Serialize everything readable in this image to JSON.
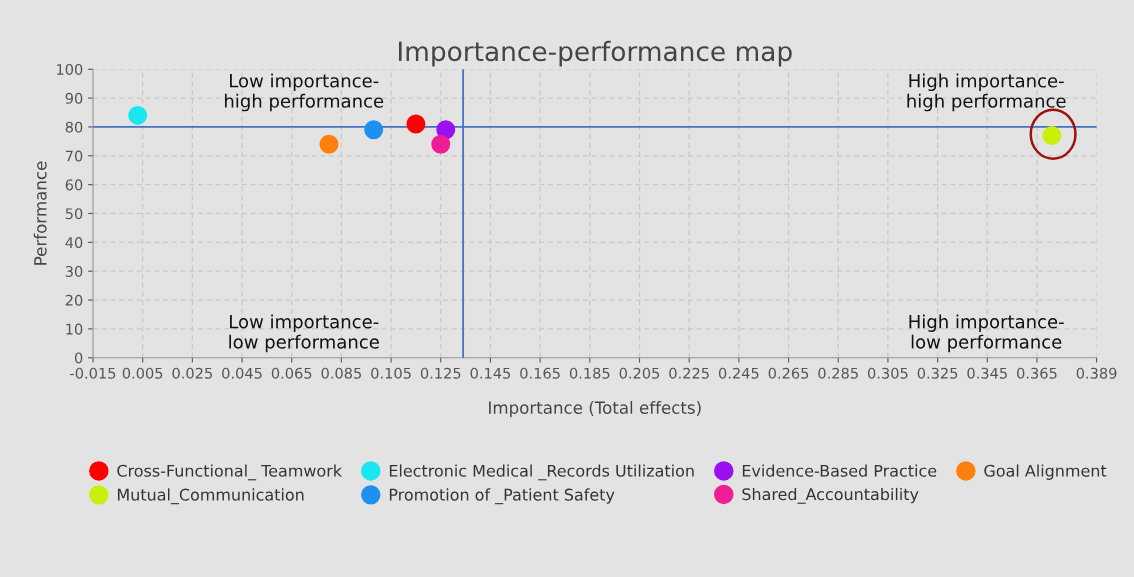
{
  "chart_data": {
    "type": "scatter",
    "title": "Importance-performance map",
    "xlabel": "Importance (Total effects)",
    "ylabel": "Performance",
    "xlim": [
      -0.015,
      0.389
    ],
    "xticks": [
      -0.015,
      0.005,
      0.025,
      0.045,
      0.065,
      0.085,
      0.105,
      0.125,
      0.145,
      0.165,
      0.185,
      0.205,
      0.225,
      0.245,
      0.265,
      0.285,
      0.305,
      0.325,
      0.345,
      0.365,
      0.389
    ],
    "ylim": [
      0,
      100
    ],
    "yticks": [
      0,
      10,
      20,
      30,
      40,
      50,
      60,
      70,
      80,
      90,
      100
    ],
    "grid": true,
    "legend": "bottom",
    "marker": "circle",
    "series": [
      {
        "name": "Cross-Functional_ Teamwork",
        "color": "#ff0000",
        "x": [
          0.115
        ],
        "values": [
          81
        ]
      },
      {
        "name": "Electronic Medical _Records Utilization",
        "color": "#1ae6f0",
        "x": [
          0.003
        ],
        "values": [
          84
        ]
      },
      {
        "name": "Evidence-Based Practice",
        "color": "#9b10f0",
        "x": [
          0.127
        ],
        "values": [
          79
        ]
      },
      {
        "name": "Goal Alignment",
        "color": "#ff7f0e",
        "x": [
          0.08
        ],
        "values": [
          74
        ]
      },
      {
        "name": "Mutual_Communication",
        "color": "#c8f00a",
        "x": [
          0.371
        ],
        "values": [
          77
        ]
      },
      {
        "name": "Promotion of _Patient Safety",
        "color": "#1e90f0",
        "x": [
          0.098
        ],
        "values": [
          79
        ]
      },
      {
        "name": "Shared_Accountability",
        "color": "#f01e96",
        "x": [
          0.125
        ],
        "values": [
          74
        ]
      }
    ],
    "ref_lines": [
      {
        "axis": "x",
        "value": 0.134,
        "color": "#4472c4"
      },
      {
        "axis": "y",
        "value": 80,
        "color": "#4472c4"
      }
    ],
    "annotations": [
      "Low importance-\nhigh performance",
      "High importance-\nhigh performance",
      "Low importance-\nlow performance",
      "High importance-\nlow performance"
    ]
  }
}
